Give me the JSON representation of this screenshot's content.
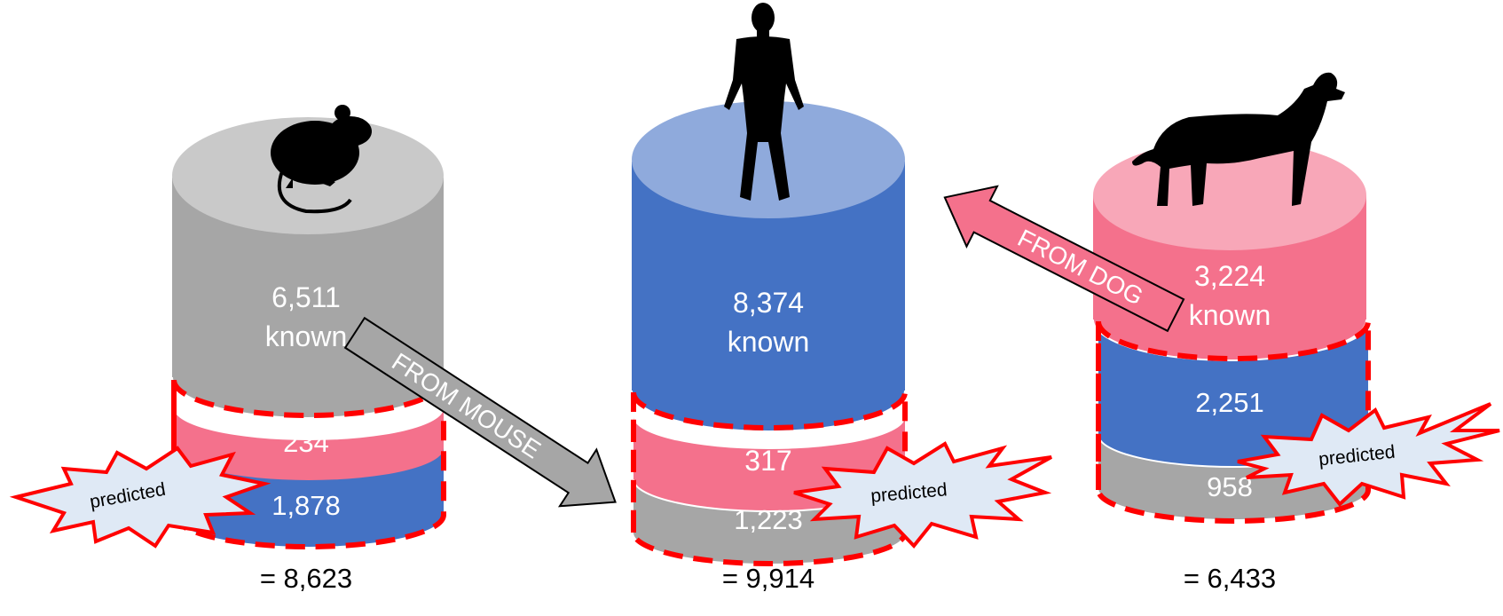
{
  "colors": {
    "gray_side": "#a6a6a6",
    "gray_top": "#c9c9c9",
    "blue_side": "#4472c4",
    "blue_top": "#8faadc",
    "pink_side": "#f4718c",
    "pink_top": "#f8a7b8",
    "dashed_outline": "#ff0000",
    "burst_fill": "#dfe9f5"
  },
  "cylinders": {
    "mouse": {
      "icon": "mouse-silhouette",
      "known_value": "6,511",
      "known_label": "known",
      "predicted_1": "234",
      "predicted_2": "1,878",
      "total": "= 8,623",
      "burst_label": "predicted"
    },
    "human": {
      "icon": "human-silhouette",
      "known_value": "8,374",
      "known_label": "known",
      "predicted_1": "317",
      "predicted_2": "1,223",
      "total": "= 9,914",
      "burst_label": "predicted"
    },
    "dog": {
      "icon": "dog-silhouette",
      "known_value": "3,224",
      "known_label": "known",
      "predicted_1": "2,251",
      "predicted_2": "958",
      "total": "= 6,433",
      "burst_label": "predicted"
    }
  },
  "arrows": {
    "from_mouse": "FROM MOUSE",
    "from_dog": "FROM DOG"
  }
}
